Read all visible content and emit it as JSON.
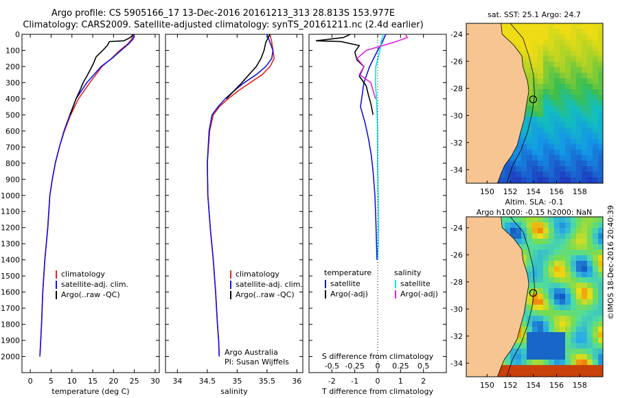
{
  "header": {
    "line1": "Argo profile: CS 5905166_17 13-Dec-2016 20161213_313 28.813S 153.977E",
    "line2": "Climatology: CARS2009. Satellite-adjusted climatology: synTS_20161211.nc (2.4d earlier)"
  },
  "stamp": "©IMOS 18-Dec-2016 20:40:39",
  "colors": {
    "climatology": "#e0231c",
    "satellite": "#1212e0",
    "argo": "#000000",
    "sal_satellite": "#00e5e5",
    "sal_argo": "#e020e0",
    "land": "#f7c592"
  },
  "chart_data": [
    {
      "type": "line",
      "title": "",
      "xlabel": "temperature (deg C)",
      "ylabel": "",
      "xlim": [
        -2,
        31
      ],
      "ylim": [
        0,
        2100
      ],
      "y_reversed": true,
      "x_ticks": [
        0,
        5,
        10,
        15,
        20,
        25,
        30
      ],
      "y_ticks": [
        0,
        100,
        200,
        300,
        400,
        500,
        600,
        700,
        800,
        900,
        1000,
        1100,
        1200,
        1300,
        1400,
        1500,
        1600,
        1700,
        1800,
        1900,
        2000
      ],
      "legend": {
        "position": "lower-right",
        "items": [
          "climatology",
          "satellite-adj. clim.",
          "Argo(..raw -QC)"
        ]
      },
      "series": [
        {
          "name": "climatology",
          "color": "#e0231c",
          "x": [
            24.6,
            24.4,
            23.4,
            21.5,
            19.5,
            17.2,
            14.3,
            11.6,
            9.7,
            8.2,
            7.0,
            6.0,
            5.3,
            4.7,
            4.2,
            3.5,
            3.0,
            2.7,
            2.5,
            2.3
          ],
          "y": [
            0,
            30,
            60,
            100,
            150,
            200,
            300,
            400,
            500,
            600,
            700,
            800,
            900,
            1000,
            1200,
            1400,
            1600,
            1800,
            1900,
            2000
          ]
        },
        {
          "name": "satellite-adj. clim.",
          "color": "#1212e0",
          "x": [
            25.0,
            24.7,
            23.6,
            21.8,
            19.6,
            17.0,
            13.6,
            11.0,
            9.5,
            8.1,
            7.0,
            6.0,
            5.3,
            4.7,
            4.2,
            3.5,
            3.0,
            2.7,
            2.5,
            2.3
          ],
          "y": [
            0,
            30,
            60,
            100,
            150,
            200,
            300,
            400,
            500,
            600,
            700,
            800,
            900,
            1000,
            1200,
            1400,
            1600,
            1800,
            1900,
            2000
          ]
        },
        {
          "name": "Argo(..raw -QC)",
          "color": "#000000",
          "x": [
            24.8,
            24.0,
            22.5,
            19.0,
            18.5,
            17.4,
            15.8,
            15.2,
            14.4,
            13.6,
            12.7,
            11.9,
            11.0,
            10.3,
            9.6
          ],
          "y": [
            0,
            20,
            40,
            45,
            70,
            100,
            140,
            180,
            220,
            260,
            300,
            350,
            400,
            450,
            500
          ]
        }
      ]
    },
    {
      "type": "line",
      "title": "",
      "xlabel": "salinity",
      "ylabel": "",
      "xlim": [
        33.8,
        36.1
      ],
      "ylim": [
        0,
        2100
      ],
      "y_reversed": true,
      "x_ticks": [
        34,
        34.5,
        35,
        35.5,
        36
      ],
      "legend": {
        "position": "lower-right",
        "items": [
          "climatology",
          "satellite-adj. clim.",
          "Argo(..raw -QC)"
        ]
      },
      "annotation": [
        "Argo Australia",
        "PI: Susan Wijffels"
      ],
      "series": [
        {
          "name": "climatology",
          "color": "#e0231c",
          "x": [
            35.55,
            35.58,
            35.6,
            35.62,
            35.55,
            35.42,
            35.22,
            35.02,
            34.85,
            34.7,
            34.6,
            34.54,
            34.5,
            34.51,
            34.55,
            34.6,
            34.64,
            34.67,
            34.69,
            34.7
          ],
          "y": [
            0,
            50,
            100,
            150,
            200,
            250,
            300,
            350,
            400,
            450,
            500,
            600,
            800,
            1000,
            1200,
            1400,
            1600,
            1800,
            1900,
            2000
          ]
        },
        {
          "name": "satellite-adj. clim.",
          "color": "#1212e0",
          "x": [
            35.5,
            35.55,
            35.6,
            35.58,
            35.48,
            35.32,
            35.12,
            34.95,
            34.8,
            34.68,
            34.58,
            34.53,
            34.5,
            34.51,
            34.55,
            34.6,
            34.64,
            34.67,
            34.69,
            34.7
          ],
          "y": [
            0,
            50,
            100,
            150,
            200,
            250,
            300,
            350,
            400,
            450,
            500,
            600,
            800,
            1000,
            1200,
            1400,
            1600,
            1800,
            1900,
            2000
          ]
        },
        {
          "name": "Argo(..raw -QC)",
          "color": "#000000",
          "x": [
            35.55,
            35.52,
            35.48,
            35.45,
            35.4,
            35.32,
            35.2,
            35.08,
            34.95,
            34.82
          ],
          "y": [
            0,
            20,
            50,
            100,
            150,
            200,
            250,
            300,
            350,
            400
          ]
        }
      ]
    },
    {
      "type": "line",
      "title": "",
      "xlabel": "T difference from climatology",
      "ylabel": "",
      "xlim": [
        -3,
        3
      ],
      "ylim": [
        0,
        2100
      ],
      "y_reversed": true,
      "x_ticks": [
        -2,
        -1,
        0,
        1,
        2
      ],
      "top_axis": {
        "label": "S difference from climatology",
        "ticks": [
          "-0.5",
          "-0.25",
          "0",
          "0.25",
          "0.5"
        ]
      },
      "legend": {
        "position": "lower-right",
        "groups": [
          {
            "title": "temperature",
            "items": [
              "satellite",
              "Argo(-adj)"
            ]
          },
          {
            "title": "salinity",
            "items": [
              "satellite",
              "Argo(-adj)"
            ]
          }
        ]
      },
      "series": [
        {
          "name": "temperature satellite",
          "color": "#1212e0",
          "x": [
            0.35,
            0.2,
            0.0,
            -0.35,
            -0.6,
            -0.75,
            -0.55,
            -0.4,
            -0.28,
            -0.2,
            -0.12,
            -0.08,
            -0.05,
            -0.03
          ],
          "y": [
            0,
            50,
            100,
            200,
            300,
            450,
            550,
            650,
            750,
            850,
            1000,
            1150,
            1300,
            1400
          ]
        },
        {
          "name": "temperature Argo(-adj)",
          "color": "#000000",
          "x": [
            -1.2,
            -1.5,
            -2.7,
            -1.6,
            -0.8,
            -1.0,
            -0.9,
            -0.6,
            -0.8,
            -0.5,
            -0.4,
            -0.3,
            -0.2
          ],
          "y": [
            0,
            20,
            40,
            45,
            70,
            110,
            160,
            200,
            260,
            320,
            380,
            430,
            500
          ]
        },
        {
          "name": "salinity satellite",
          "color": "#00e5e5",
          "x": [
            0.25,
            0.15,
            0.1,
            -0.08,
            -0.1,
            -0.05,
            0.0,
            0.0,
            0.02,
            0.03,
            0.02,
            0.0
          ],
          "y": [
            0,
            50,
            100,
            200,
            300,
            400,
            600,
            800,
            1000,
            1200,
            1300,
            1400
          ]
        },
        {
          "name": "salinity Argo(-adj)",
          "color": "#e020e0",
          "x": [
            1.2,
            1.3,
            0.7,
            -0.5,
            -0.9,
            -0.6,
            -0.8,
            -0.3,
            -0.1
          ],
          "y": [
            0,
            20,
            50,
            100,
            150,
            200,
            250,
            300,
            400
          ]
        }
      ]
    },
    {
      "type": "heatmap",
      "title": "sat. SST: 25.1  Argo: 24.7",
      "x_ticks": [
        150,
        152,
        154,
        156,
        158
      ],
      "y_ticks": [
        -24,
        -26,
        -28,
        -30,
        -32,
        -34
      ],
      "xlim": [
        148.2,
        160
      ],
      "ylim": [
        -35,
        -23.2
      ],
      "argo_position": [
        153.977,
        -28.813
      ]
    },
    {
      "type": "heatmap",
      "title": "Altim. SLA: -0.1",
      "subtitle": "Argo h1000: -0.15 h2000: NaN",
      "x_ticks": [
        150,
        152,
        154,
        156,
        158
      ],
      "y_ticks": [
        -24,
        -26,
        -28,
        -30,
        -32,
        -34
      ],
      "xlim": [
        148.2,
        160
      ],
      "ylim": [
        -35,
        -23.2
      ],
      "argo_position": [
        153.977,
        -28.813
      ]
    }
  ]
}
